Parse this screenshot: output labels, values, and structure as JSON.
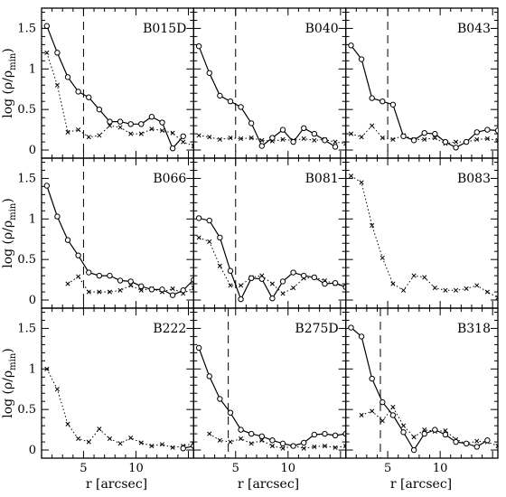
{
  "chart_data": {
    "type": "line",
    "layout": "3x3 grid of panels with shared axes",
    "xlabel": "r [arcsec]",
    "ylabel": "log (ρ/ρmin)",
    "ylabel_main": "log (ρ/ρ",
    "ylabel_sub": "min",
    "ylabel_close": ")",
    "xlim": [
      1.0,
      15.5
    ],
    "ylim": [
      -0.1,
      1.75
    ],
    "x_ticks": [
      {
        "value": 5,
        "label": "5"
      },
      {
        "value": 10,
        "label": "10"
      }
    ],
    "y_ticks": [
      {
        "value": 0,
        "label": "0"
      },
      {
        "value": 0.5,
        "label": "0.5"
      },
      {
        "value": 1,
        "label": "1"
      },
      {
        "value": 1.5,
        "label": "1.5"
      }
    ],
    "series_styles": {
      "solid": {
        "line": "solid",
        "marker": "open-circle"
      },
      "dotted": {
        "line": "dotted",
        "marker": "x"
      }
    },
    "panels": [
      {
        "label": "B015D",
        "vline": 5,
        "solid": {
          "x": [
            1.5,
            2.5,
            3.5,
            4.5,
            5.5,
            6.5,
            7.5,
            8.5,
            9.5,
            10.5,
            11.5,
            12.5,
            13.5,
            14.5
          ],
          "y": [
            1.53,
            1.2,
            0.9,
            0.72,
            0.65,
            0.5,
            0.35,
            0.35,
            0.32,
            0.32,
            0.41,
            0.34,
            0.02,
            0.17
          ]
        },
        "dotted": {
          "x": [
            1.5,
            2.5,
            3.5,
            4.5,
            5.5,
            6.5,
            7.5,
            8.5,
            9.5,
            10.5,
            11.5,
            12.5,
            13.5,
            14.5,
            15.5
          ],
          "y": [
            1.2,
            0.8,
            0.22,
            0.25,
            0.16,
            0.18,
            0.3,
            0.28,
            0.2,
            0.2,
            0.26,
            0.24,
            0.21,
            0.1,
            0.05
          ]
        }
      },
      {
        "label": "B040",
        "vline": 5,
        "solid": {
          "x": [
            1.5,
            2.5,
            3.5,
            4.5,
            5.5,
            6.5,
            7.5,
            8.5,
            9.5,
            10.5,
            11.5,
            12.5,
            13.5,
            14.5
          ],
          "y": [
            1.28,
            0.95,
            0.67,
            0.6,
            0.53,
            0.33,
            0.05,
            0.15,
            0.25,
            0.1,
            0.27,
            0.2,
            0.12,
            0.04
          ]
        },
        "dotted": {
          "x": [
            1.5,
            2.5,
            3.5,
            4.5,
            5.5,
            6.5,
            7.5,
            8.5,
            9.5,
            10.5,
            11.5,
            12.5,
            13.5,
            14.5,
            15.5
          ],
          "y": [
            0.18,
            0.16,
            0.13,
            0.15,
            0.14,
            0.15,
            0.12,
            0.11,
            0.13,
            0.12,
            0.14,
            0.12,
            0.13,
            0.1,
            0.08
          ]
        }
      },
      {
        "label": "B043",
        "vline": 5,
        "solid": {
          "x": [
            1.5,
            2.5,
            3.5,
            4.5,
            5.5,
            6.5,
            7.5,
            8.5,
            9.5,
            10.5,
            11.5,
            12.5,
            13.5,
            14.5,
            15.5
          ],
          "y": [
            1.29,
            1.12,
            0.64,
            0.6,
            0.56,
            0.17,
            0.12,
            0.21,
            0.2,
            0.1,
            0.03,
            0.1,
            0.22,
            0.25,
            0.24
          ]
        },
        "dotted": {
          "x": [
            1.5,
            2.5,
            3.5,
            4.5,
            5.5,
            6.5,
            7.5,
            8.5,
            9.5,
            10.5,
            11.5,
            12.5,
            13.5,
            14.5,
            15.5
          ],
          "y": [
            0.2,
            0.16,
            0.3,
            0.15,
            0.13,
            0.18,
            0.13,
            0.13,
            0.15,
            0.08,
            0.1,
            0.1,
            0.13,
            0.14,
            0.12
          ]
        }
      },
      {
        "label": "B066",
        "vline": 5,
        "solid": {
          "x": [
            1.5,
            2.5,
            3.5,
            4.5,
            5.5,
            6.5,
            7.5,
            8.5,
            9.5,
            10.5,
            11.5,
            12.5,
            13.5,
            14.5,
            15.5
          ],
          "y": [
            1.41,
            1.03,
            0.74,
            0.55,
            0.34,
            0.3,
            0.3,
            0.24,
            0.23,
            0.17,
            0.13,
            0.13,
            0.06,
            0.12,
            0.25
          ]
        },
        "dotted": {
          "x": [
            3.5,
            4.5,
            5.5,
            6.5,
            7.5,
            8.5,
            9.5,
            10.5,
            11.5,
            12.5,
            13.5,
            14.5,
            15.5
          ],
          "y": [
            0.2,
            0.29,
            0.1,
            0.1,
            0.1,
            0.12,
            0.18,
            0.12,
            0.14,
            0.1,
            0.14,
            0.08,
            0.15
          ]
        }
      },
      {
        "label": "B081",
        "vline": 5,
        "solid": {
          "x": [
            1.5,
            2.5,
            3.5,
            4.5,
            5.5,
            6.5,
            7.5,
            8.5,
            9.5,
            10.5,
            11.5,
            12.5,
            13.5,
            14.5,
            15.5
          ],
          "y": [
            1.01,
            0.98,
            0.77,
            0.36,
            0.01,
            0.27,
            0.26,
            0.02,
            0.23,
            0.34,
            0.3,
            0.28,
            0.2,
            0.21,
            0.16
          ]
        },
        "dotted": {
          "x": [
            1.5,
            2.5,
            3.5,
            4.5,
            5.5,
            6.5,
            7.5,
            8.5,
            9.5,
            10.5,
            11.5,
            12.5,
            13.5,
            14.5,
            15.5
          ],
          "y": [
            0.77,
            0.72,
            0.42,
            0.18,
            0.18,
            0.28,
            0.3,
            0.2,
            0.08,
            0.15,
            0.27,
            0.28,
            0.24,
            0.2,
            0.16
          ]
        }
      },
      {
        "label": "B083",
        "vline": null,
        "solid": null,
        "dotted": {
          "x": [
            1.5,
            2.5,
            3.5,
            4.5,
            5.5,
            6.5,
            7.5,
            8.5,
            9.5,
            10.5,
            11.5,
            12.5,
            13.5,
            14.5,
            15.5
          ],
          "y": [
            1.53,
            1.45,
            0.92,
            0.52,
            0.2,
            0.12,
            0.3,
            0.28,
            0.15,
            0.12,
            0.12,
            0.14,
            0.18,
            0.1,
            0.03
          ]
        }
      },
      {
        "label": "B222",
        "vline": null,
        "solid": {
          "x": [
            14.5,
            15.5
          ],
          "y": [
            0.02,
            0.05
          ]
        },
        "dotted": {
          "x": [
            1.5,
            2.5,
            3.5,
            4.5,
            5.5,
            6.5,
            7.5,
            8.5,
            9.5,
            10.5,
            11.5,
            12.5,
            13.5,
            14.5,
            15.5
          ],
          "y": [
            1.0,
            0.75,
            0.32,
            0.14,
            0.1,
            0.26,
            0.14,
            0.08,
            0.15,
            0.09,
            0.05,
            0.07,
            0.03,
            0.05,
            0.08
          ]
        }
      },
      {
        "label": "B275D",
        "vline": 4.3,
        "solid": {
          "x": [
            1.5,
            2.5,
            3.5,
            4.5,
            5.5,
            6.5,
            7.5,
            8.5,
            9.5,
            10.5,
            11.5,
            12.5,
            13.5,
            14.5,
            15.5
          ],
          "y": [
            1.26,
            0.91,
            0.63,
            0.46,
            0.25,
            0.2,
            0.17,
            0.12,
            0.08,
            0.05,
            0.09,
            0.19,
            0.2,
            0.18,
            0.2
          ]
        },
        "dotted": {
          "x": [
            2.5,
            3.5,
            4.5,
            5.5,
            6.5,
            7.5,
            8.5,
            9.5,
            10.5,
            11.5,
            12.5,
            13.5,
            14.5,
            15.5
          ],
          "y": [
            0.2,
            0.12,
            0.1,
            0.14,
            0.08,
            0.12,
            0.05,
            0.02,
            0.05,
            0.02,
            0.04,
            0.05,
            0.03,
            0.05
          ]
        }
      },
      {
        "label": "B318",
        "vline": 4.3,
        "solid": {
          "x": [
            1.5,
            2.5,
            3.5,
            4.5,
            5.5,
            6.5,
            7.5,
            8.5,
            9.5,
            10.5,
            11.5,
            12.5,
            13.5,
            14.5
          ],
          "y": [
            1.51,
            1.4,
            0.88,
            0.59,
            0.43,
            0.22,
            0.0,
            0.2,
            0.25,
            0.19,
            0.1,
            0.08,
            0.04,
            0.12
          ]
        },
        "dotted": {
          "x": [
            2.5,
            3.5,
            4.5,
            5.5,
            6.5,
            7.5,
            8.5,
            9.5,
            10.5,
            11.5,
            12.5,
            13.5,
            14.5,
            15.5
          ],
          "y": [
            0.43,
            0.48,
            0.36,
            0.53,
            0.3,
            0.16,
            0.25,
            0.23,
            0.24,
            0.13,
            0.08,
            0.11,
            0.1,
            0.05
          ]
        }
      }
    ]
  }
}
